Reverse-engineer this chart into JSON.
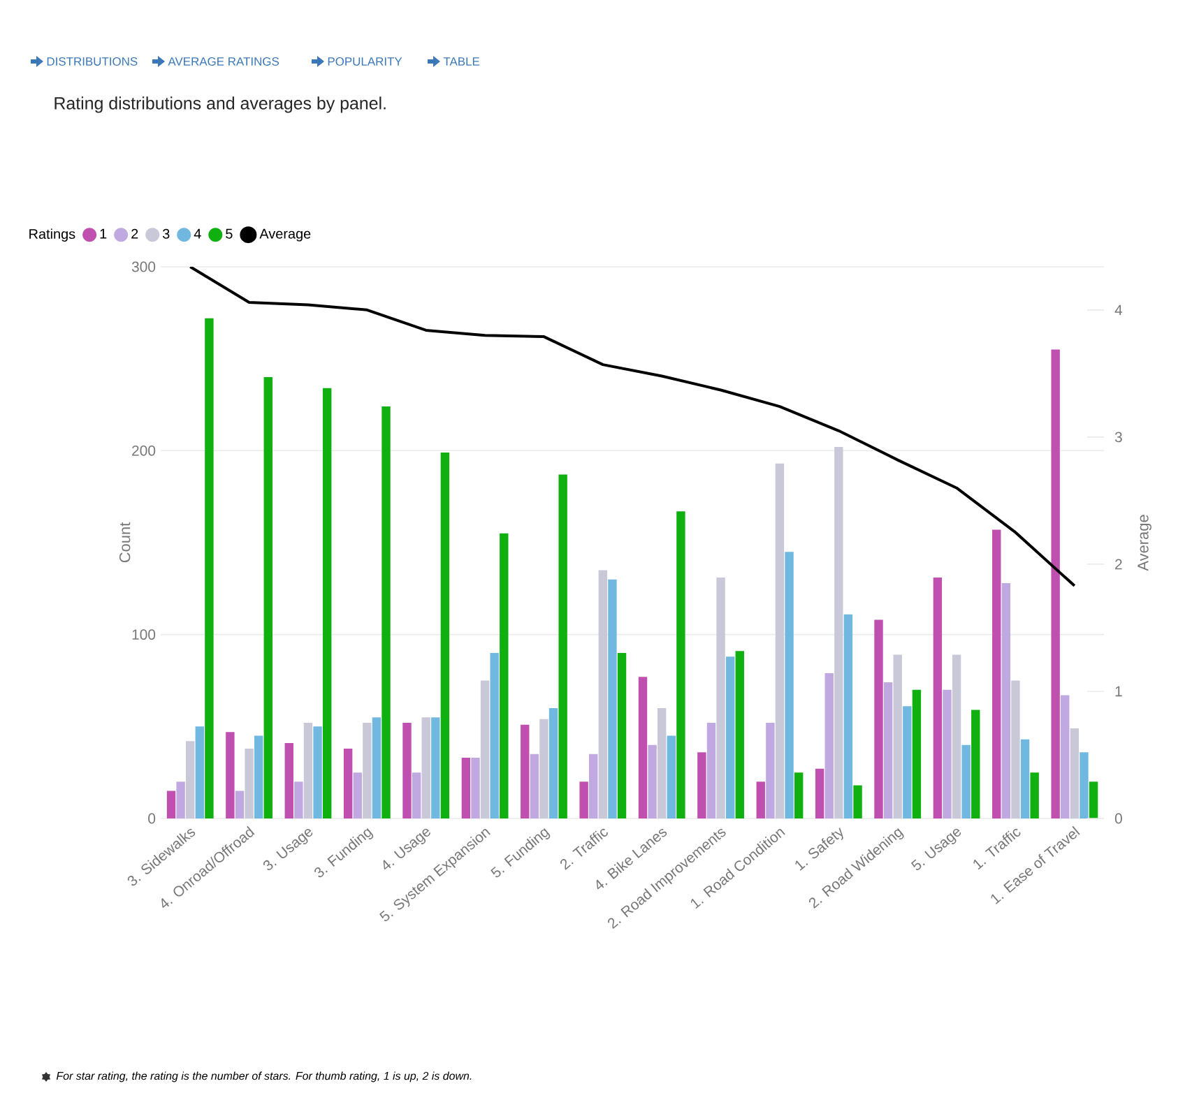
{
  "chart_data": {
    "type": "bar",
    "title": "Rating distributions and averages by panel.",
    "annotations": [
      "DISTRIBUTIONS",
      "AVERAGE RATINGS",
      "POPULARITY",
      "TABLE",
      "For star rating, the rating is the number of stars. For thumb rating, 1 is up, 2 is down."
    ],
    "categories": [
      "3. Sidewalks",
      "4. Onroad/Offroad",
      "3. Usage",
      "3. Funding",
      "4. Usage",
      "5. System Expansion",
      "5. Funding",
      "2. Traffic",
      "4. Bike Lanes",
      "2. Road Improvements",
      "1. Road Condition",
      "1. Safety",
      "2. Road Widening",
      "5. Usage",
      "1. Traffic",
      "1. Ease of Travel"
    ],
    "series": [
      {
        "name": "1",
        "color": "#c050b0",
        "values": [
          15,
          47,
          41,
          38,
          52,
          33,
          51,
          20,
          77,
          36,
          20,
          27,
          108,
          131,
          157,
          255
        ]
      },
      {
        "name": "2",
        "color": "#c0a8e0",
        "values": [
          20,
          15,
          20,
          25,
          25,
          33,
          35,
          35,
          40,
          52,
          52,
          79,
          74,
          70,
          128,
          67
        ]
      },
      {
        "name": "3",
        "color": "#c8c8d8",
        "values": [
          42,
          38,
          52,
          52,
          55,
          75,
          54,
          135,
          60,
          131,
          193,
          202,
          89,
          89,
          75,
          49
        ]
      },
      {
        "name": "4",
        "color": "#70b8e0",
        "values": [
          50,
          45,
          50,
          55,
          55,
          90,
          60,
          130,
          45,
          88,
          145,
          111,
          61,
          40,
          43,
          36
        ]
      },
      {
        "name": "5",
        "color": "#10b010",
        "values": [
          272,
          240,
          234,
          224,
          199,
          155,
          187,
          90,
          167,
          91,
          25,
          18,
          70,
          59,
          25,
          20
        ]
      },
      {
        "name": "Average",
        "type": "line",
        "axis": "y2",
        "color": "#000000",
        "values": [
          4.34,
          4.06,
          4.04,
          4.0,
          3.84,
          3.8,
          3.79,
          3.57,
          3.48,
          3.37,
          3.24,
          3.05,
          2.82,
          2.6,
          2.25,
          1.83
        ]
      }
    ],
    "legend_title": "Ratings",
    "legend": "top left",
    "ylabel": "Count",
    "y2label": "Average",
    "ylim": [
      0,
      300
    ],
    "yticks": [
      0,
      100,
      200,
      300
    ],
    "y2lim": [
      0,
      4.34
    ],
    "y2ticks": [
      0,
      1,
      2,
      3,
      4
    ],
    "grid": "y"
  }
}
